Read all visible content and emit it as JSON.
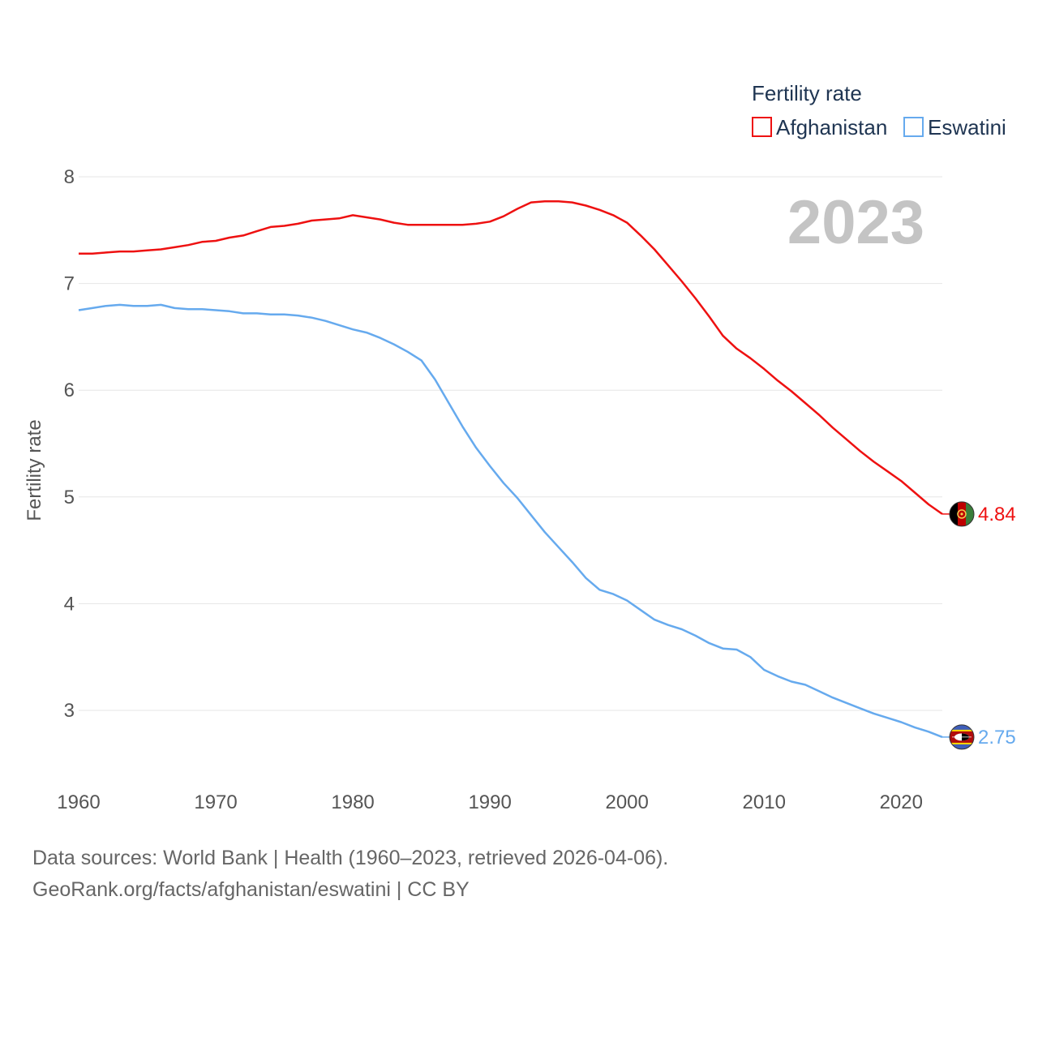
{
  "colors": {
    "afghanistan": "#ee1111",
    "eswatini": "#66aaee",
    "grid": "#e6e6e6"
  },
  "chart_data": {
    "type": "line",
    "title": "Fertility rate",
    "xlabel": "",
    "ylabel": "Fertility rate",
    "current_year": "2023",
    "xlim": [
      1960,
      2023
    ],
    "ylim": [
      2.6,
      8.1
    ],
    "xticks": [
      1960,
      1970,
      1980,
      1990,
      2000,
      2010,
      2020
    ],
    "yticks": [
      3,
      4,
      5,
      6,
      7,
      8
    ],
    "x": [
      1960,
      1961,
      1962,
      1963,
      1964,
      1965,
      1966,
      1967,
      1968,
      1969,
      1970,
      1971,
      1972,
      1973,
      1974,
      1975,
      1976,
      1977,
      1978,
      1979,
      1980,
      1981,
      1982,
      1983,
      1984,
      1985,
      1986,
      1987,
      1988,
      1989,
      1990,
      1991,
      1992,
      1993,
      1994,
      1995,
      1996,
      1997,
      1998,
      1999,
      2000,
      2001,
      2002,
      2003,
      2004,
      2005,
      2006,
      2007,
      2008,
      2009,
      2010,
      2011,
      2012,
      2013,
      2014,
      2015,
      2016,
      2017,
      2018,
      2019,
      2020,
      2021,
      2022,
      2023
    ],
    "series": [
      {
        "name": "Afghanistan",
        "end_label": "4.84",
        "values": [
          7.28,
          7.28,
          7.29,
          7.3,
          7.3,
          7.31,
          7.32,
          7.34,
          7.36,
          7.39,
          7.4,
          7.43,
          7.45,
          7.49,
          7.53,
          7.54,
          7.56,
          7.59,
          7.6,
          7.61,
          7.64,
          7.62,
          7.6,
          7.57,
          7.55,
          7.55,
          7.55,
          7.55,
          7.55,
          7.56,
          7.58,
          7.63,
          7.7,
          7.76,
          7.77,
          7.77,
          7.76,
          7.73,
          7.69,
          7.64,
          7.57,
          7.45,
          7.32,
          7.17,
          7.02,
          6.86,
          6.69,
          6.51,
          6.39,
          6.3,
          6.2,
          6.09,
          5.99,
          5.88,
          5.77,
          5.65,
          5.54,
          5.43,
          5.33,
          5.24,
          5.15,
          5.04,
          4.93,
          4.84
        ]
      },
      {
        "name": "Eswatini",
        "end_label": "2.75",
        "values": [
          6.75,
          6.77,
          6.79,
          6.8,
          6.79,
          6.79,
          6.8,
          6.77,
          6.76,
          6.76,
          6.75,
          6.74,
          6.72,
          6.72,
          6.71,
          6.71,
          6.7,
          6.68,
          6.65,
          6.61,
          6.57,
          6.54,
          6.49,
          6.43,
          6.36,
          6.28,
          6.1,
          5.88,
          5.66,
          5.46,
          5.29,
          5.13,
          4.99,
          4.83,
          4.67,
          4.53,
          4.39,
          4.24,
          4.13,
          4.09,
          4.03,
          3.94,
          3.85,
          3.8,
          3.76,
          3.7,
          3.63,
          3.58,
          3.57,
          3.5,
          3.38,
          3.32,
          3.27,
          3.24,
          3.18,
          3.12,
          3.07,
          3.02,
          2.97,
          2.93,
          2.89,
          2.84,
          2.8,
          2.75
        ]
      }
    ]
  },
  "source": {
    "line1": "Data sources: World Bank | Health (1960–2023, retrieved 2026-04-06).",
    "line2": "GeoRank.org/facts/afghanistan/eswatini | CC BY"
  }
}
